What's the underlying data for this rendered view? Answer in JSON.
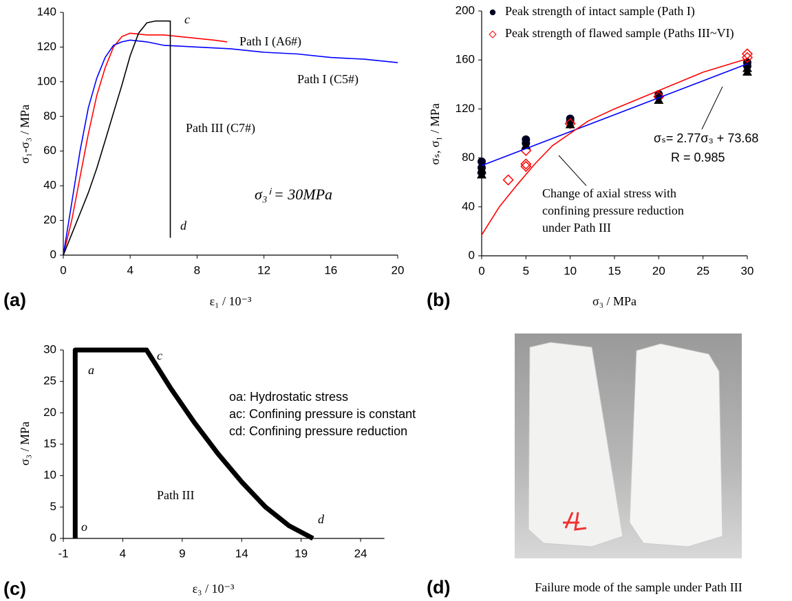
{
  "chart_data": [
    {
      "type": "line",
      "panel_label": "(a)",
      "x_label": "ε₁ / 10⁻³",
      "y_label": "σ₁-σ₃ / MPa",
      "xlim": [
        0,
        20
      ],
      "xticks": [
        0,
        4,
        8,
        12,
        16,
        20
      ],
      "ylim": [
        0,
        140
      ],
      "yticks": [
        0,
        20,
        40,
        60,
        80,
        100,
        120,
        140
      ],
      "annotations": [
        "c",
        "d",
        "σ₃ⁱ = 30MPa"
      ],
      "series": [
        {
          "name": "Path I (A6#)",
          "color": "#ff0000",
          "x": [
            0,
            0.5,
            1,
            1.5,
            2,
            2.5,
            3,
            3.5,
            4,
            5,
            6,
            7,
            8,
            9,
            9.8
          ],
          "values": [
            0,
            20,
            45,
            70,
            92,
            108,
            120,
            126,
            128,
            127,
            127,
            126,
            125,
            124,
            123
          ]
        },
        {
          "name": "Path I (C5#)",
          "color": "#0000ff",
          "x": [
            0,
            0.5,
            1,
            1.5,
            2,
            2.5,
            3,
            3.5,
            4,
            5,
            6,
            8,
            10,
            12,
            14,
            16,
            18,
            20
          ],
          "values": [
            0,
            30,
            60,
            85,
            102,
            114,
            121,
            123,
            124,
            123,
            121,
            120,
            119,
            117,
            116,
            114,
            113,
            111
          ]
        },
        {
          "name": "Path III (C7#)",
          "color": "#000000",
          "x": [
            0,
            0.5,
            1,
            1.5,
            2,
            2.5,
            3,
            3.5,
            4,
            4.5,
            5,
            5.5,
            6,
            6.4,
            6.4,
            6.4
          ],
          "values": [
            0,
            12,
            24,
            36,
            50,
            66,
            82,
            98,
            115,
            128,
            134,
            135,
            135,
            135,
            60,
            10
          ]
        }
      ]
    },
    {
      "type": "scatter",
      "panel_label": "(b)",
      "x_label": "σ₃ / MPa",
      "y_label": "σₛ, σ₁ / MPa",
      "xlim": [
        0,
        30
      ],
      "xticks": [
        0,
        5,
        10,
        15,
        20,
        25,
        30
      ],
      "ylim": [
        0,
        200
      ],
      "yticks": [
        0,
        40,
        80,
        120,
        160,
        200
      ],
      "annotations": [
        "σₛ= 2.77σ₃ + 73.68",
        "R = 0.985",
        "Change of axial stress with",
        "confining pressure reduction",
        "under Path III"
      ],
      "series": [
        {
          "name": "Peak strength of intact sample (Path I)",
          "color": "#000022",
          "marker": "circle",
          "x": [
            0,
            0,
            0,
            5,
            5,
            10,
            10,
            20,
            20,
            30,
            30
          ],
          "values": [
            77,
            72,
            68,
            95,
            92,
            112,
            110,
            132,
            130,
            158,
            155
          ]
        },
        {
          "name": "Peak strength of flawed sample (Paths III~VI)",
          "color": "#ff0000",
          "marker": "diamond",
          "x": [
            3,
            5,
            5,
            5,
            10,
            20,
            30,
            30
          ],
          "values": [
            62,
            75,
            73,
            86,
            108,
            130,
            165,
            162
          ]
        },
        {
          "color": "#000000",
          "marker": "triangle",
          "x": [
            0,
            0,
            5,
            10,
            20,
            30,
            30
          ],
          "values": [
            70,
            66,
            90,
            107,
            127,
            153,
            150
          ]
        },
        {
          "color": "#0000ff",
          "marker": "line",
          "x": [
            0,
            30
          ],
          "values": [
            73.68,
            156.78
          ]
        },
        {
          "color": "#ff0000",
          "marker": "line",
          "x": [
            0,
            2,
            4,
            6,
            8,
            10,
            12,
            15,
            20,
            25,
            30
          ],
          "values": [
            17,
            40,
            58,
            75,
            90,
            100,
            110,
            120,
            135,
            150,
            161
          ]
        }
      ]
    },
    {
      "type": "line",
      "panel_label": "(c)",
      "x_label": "ε₃ / 10⁻³",
      "y_label": "σ₃ / MPa",
      "xlim": [
        -1,
        26
      ],
      "xticks": [
        -1,
        4,
        9,
        14,
        19,
        24
      ],
      "ylim": [
        0,
        30
      ],
      "yticks": [
        0,
        5,
        10,
        15,
        20,
        25,
        30
      ],
      "annotations": [
        "o",
        "a",
        "c",
        "d",
        "Path III",
        "oa: Hydrostatic stress",
        "ac: Confining pressure is constant",
        "cd: Confining pressure reduction"
      ],
      "series": [
        {
          "color": "#000000",
          "x": [
            0,
            0,
            6,
            8,
            10,
            12,
            14,
            16,
            18,
            20
          ],
          "values": [
            0,
            30,
            30,
            24,
            18.5,
            13.5,
            9,
            5,
            2,
            0
          ]
        }
      ]
    }
  ],
  "photo": {
    "panel_label": "(d)",
    "caption": "Failure mode of the sample under Path III"
  }
}
